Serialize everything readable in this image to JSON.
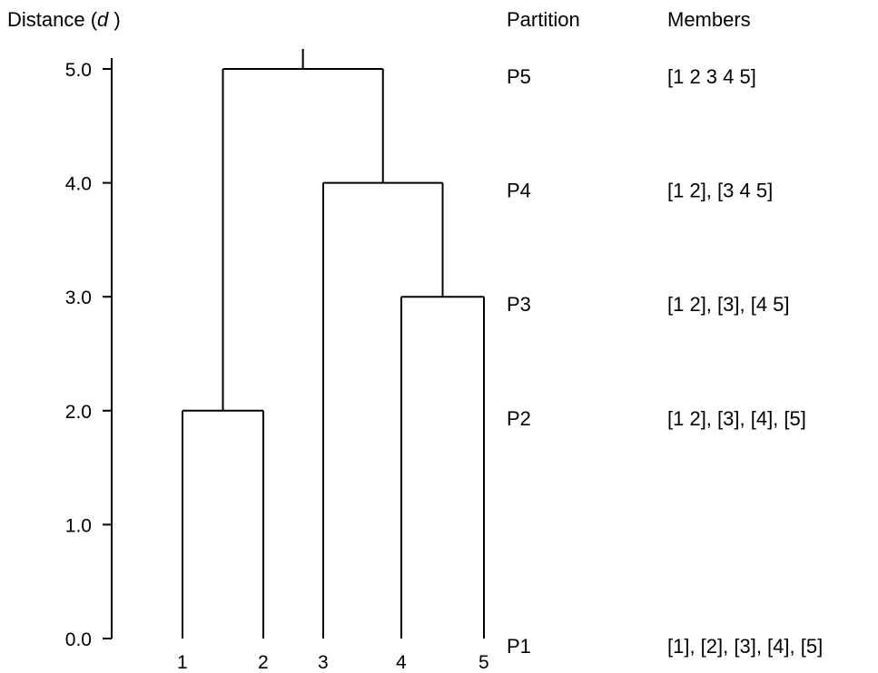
{
  "axis": {
    "label_prefix": "Distance (",
    "label_var": "d",
    "label_suffix": " )",
    "ticks": [
      {
        "value": 0,
        "label": "0.0"
      },
      {
        "value": 1,
        "label": "1.0"
      },
      {
        "value": 2,
        "label": "2.0"
      },
      {
        "value": 3,
        "label": "3.0"
      },
      {
        "value": 4,
        "label": "4.0"
      },
      {
        "value": 5,
        "label": "5.0"
      }
    ]
  },
  "leaves": [
    "1",
    "2",
    "3",
    "4",
    "5"
  ],
  "merges": [
    {
      "left": "1",
      "right": "2",
      "distance": 2.0,
      "id": "c12"
    },
    {
      "left": "4",
      "right": "5",
      "distance": 3.0,
      "id": "c45"
    },
    {
      "left": "3",
      "right": "c45",
      "distance": 4.0,
      "id": "c345"
    },
    {
      "left": "c12",
      "right": "c345",
      "distance": 5.0,
      "id": "root"
    }
  ],
  "columns": {
    "partition": "Partition",
    "members": "Members"
  },
  "partitions": [
    {
      "name": "P5",
      "members": "[1 2 3 4 5]",
      "distance": 5
    },
    {
      "name": "P4",
      "members": "[1 2], [3 4 5]",
      "distance": 4
    },
    {
      "name": "P3",
      "members": "[1 2], [3], [4 5]",
      "distance": 3
    },
    {
      "name": "P2",
      "members": "[1 2], [3], [4], [5]",
      "distance": 2
    },
    {
      "name": "P1",
      "members": "[1], [2], [3], [4], [5]",
      "distance": 0
    }
  ]
}
